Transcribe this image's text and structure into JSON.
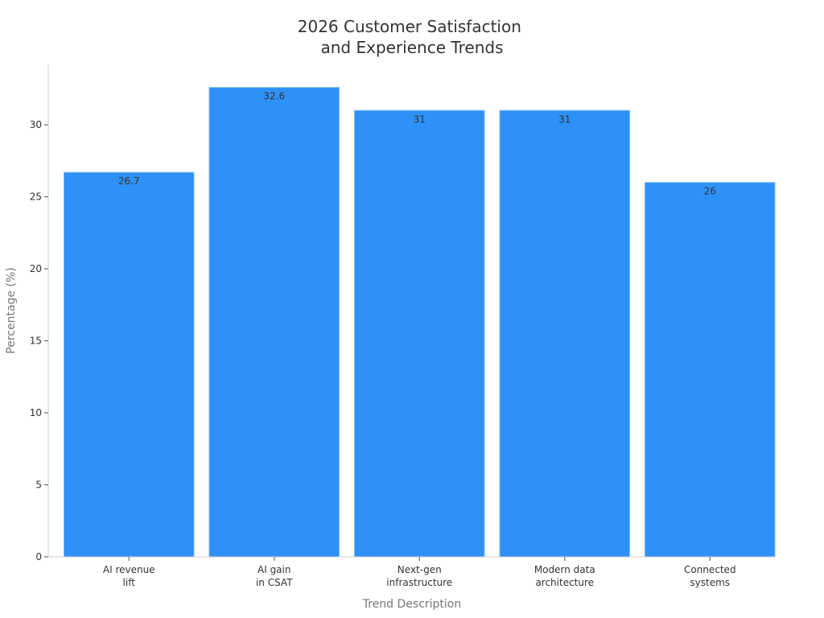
{
  "chart_data": {
    "type": "bar",
    "title": [
      "2026 Customer Satisfaction",
      "and Experience Trends"
    ],
    "xlabel": "Trend Description",
    "ylabel": "Percentage (%)",
    "categories": [
      [
        "AI revenue",
        "lift"
      ],
      [
        "AI gain",
        "in CSAT"
      ],
      [
        "Next-gen",
        "infrastructure"
      ],
      [
        "Modern data",
        "architecture"
      ],
      [
        "Connected",
        "systems"
      ]
    ],
    "values": [
      26.7,
      32.6,
      31,
      31,
      26
    ],
    "data_labels": [
      "26.7",
      "32.6",
      "31",
      "31",
      "26"
    ],
    "yticks": [
      0,
      5,
      10,
      15,
      20,
      25,
      30
    ],
    "ylim": [
      0,
      34.2
    ],
    "grid": false,
    "legend": "none",
    "bar_color": "#2d91f7"
  }
}
